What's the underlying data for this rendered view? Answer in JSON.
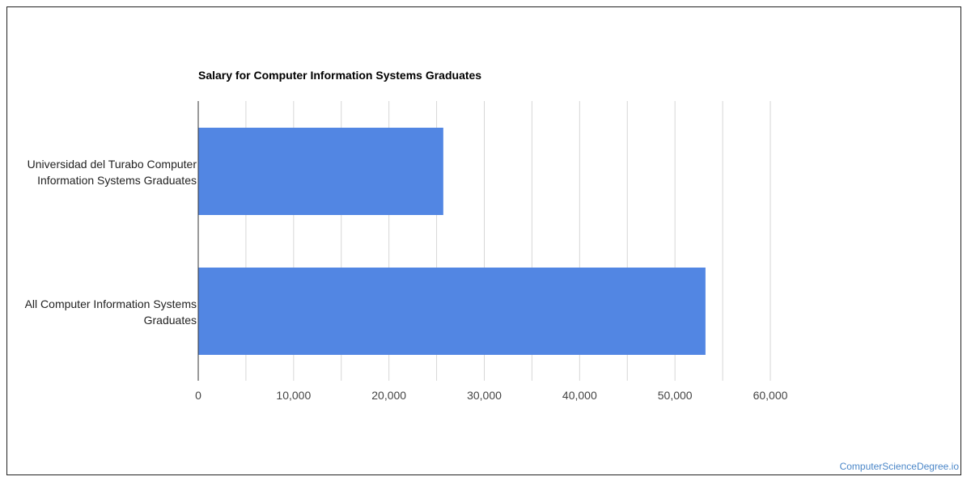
{
  "chart_data": {
    "type": "bar",
    "orientation": "horizontal",
    "title": "Salary for Computer Information Systems Graduates",
    "categories": [
      "Universidad del Turabo Computer Information Systems Graduates",
      "All Computer Information Systems Graduates"
    ],
    "category_label_lines": [
      [
        "Universidad del Turabo Computer",
        "Information Systems Graduates"
      ],
      [
        "All Computer Information Systems",
        "Graduates"
      ]
    ],
    "values": [
      25700,
      53200
    ],
    "xlim": [
      0,
      60000
    ],
    "x_ticks": [
      "0",
      "10,000",
      "20,000",
      "30,000",
      "40,000",
      "50,000",
      "60,000"
    ],
    "xlabel": "",
    "ylabel": "",
    "grid": true,
    "legend": "none",
    "bar_color": "#5286e3",
    "gridline_color": "#d6d6d6"
  },
  "watermark": "ComputerScienceDegree.io"
}
